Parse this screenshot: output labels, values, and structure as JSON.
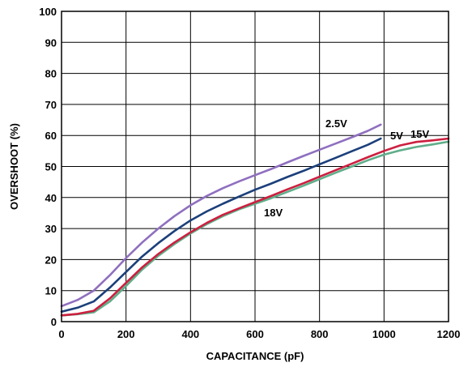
{
  "chart_data": {
    "type": "line",
    "title": "",
    "xlabel": "CAPACITANCE (pF)",
    "ylabel": "OVERSHOOT (%)",
    "xlim": [
      0,
      1200
    ],
    "ylim": [
      0,
      100
    ],
    "xticks": [
      "0",
      "200",
      "400",
      "600",
      "800",
      "1000",
      "1200"
    ],
    "yticks": [
      "0",
      "10",
      "20",
      "30",
      "40",
      "50",
      "60",
      "70",
      "80",
      "90",
      "100"
    ],
    "grid": true,
    "series": [
      {
        "name": "2.5V",
        "color": "#8f6fbf",
        "x": [
          0,
          50,
          100,
          150,
          200,
          250,
          300,
          350,
          400,
          450,
          500,
          550,
          600,
          650,
          700,
          750,
          800,
          850,
          900,
          950,
          990
        ],
        "y": [
          5,
          7,
          10,
          15,
          20.5,
          25.5,
          30,
          34,
          37.5,
          40.5,
          43,
          45.2,
          47.2,
          49.2,
          51.3,
          53.4,
          55.4,
          57.4,
          59.4,
          61.5,
          63.5
        ]
      },
      {
        "name": "5V",
        "color": "#1b3f7a",
        "x": [
          0,
          50,
          100,
          150,
          200,
          250,
          300,
          350,
          400,
          450,
          500,
          550,
          600,
          650,
          700,
          750,
          800,
          850,
          900,
          950,
          990
        ],
        "y": [
          3.2,
          4.5,
          6.5,
          11,
          16,
          21,
          25.3,
          29.2,
          32.6,
          35.5,
          38,
          40.3,
          42.5,
          44.5,
          46.6,
          48.6,
          50.7,
          52.8,
          54.9,
          57,
          59
        ]
      },
      {
        "name": "15V",
        "color": "#cc1f3f",
        "x": [
          0,
          50,
          100,
          150,
          200,
          250,
          300,
          350,
          400,
          450,
          500,
          550,
          600,
          650,
          700,
          750,
          800,
          850,
          900,
          950,
          1000,
          1050,
          1100,
          1150,
          1200
        ],
        "y": [
          2,
          2.5,
          3.5,
          7.5,
          12.5,
          17.5,
          21.8,
          25.5,
          28.8,
          31.8,
          34.4,
          36.5,
          38.5,
          40.5,
          42.6,
          44.6,
          46.7,
          48.8,
          50.9,
          53,
          55,
          56.8,
          57.9,
          58.4,
          59
        ]
      },
      {
        "name": "18V",
        "color": "#5fae8a",
        "x": [
          0,
          50,
          100,
          150,
          200,
          250,
          300,
          350,
          400,
          450,
          500,
          550,
          600,
          650,
          700,
          750,
          800,
          850,
          900,
          950,
          1000,
          1050,
          1100,
          1150,
          1200
        ],
        "y": [
          2,
          2.4,
          3,
          6.5,
          11.5,
          16.8,
          21.2,
          25,
          28.4,
          31.4,
          34,
          36.2,
          38,
          39.8,
          41.8,
          43.8,
          45.9,
          48,
          50,
          52,
          53.8,
          55.2,
          56.3,
          57.1,
          58
        ]
      }
    ]
  }
}
